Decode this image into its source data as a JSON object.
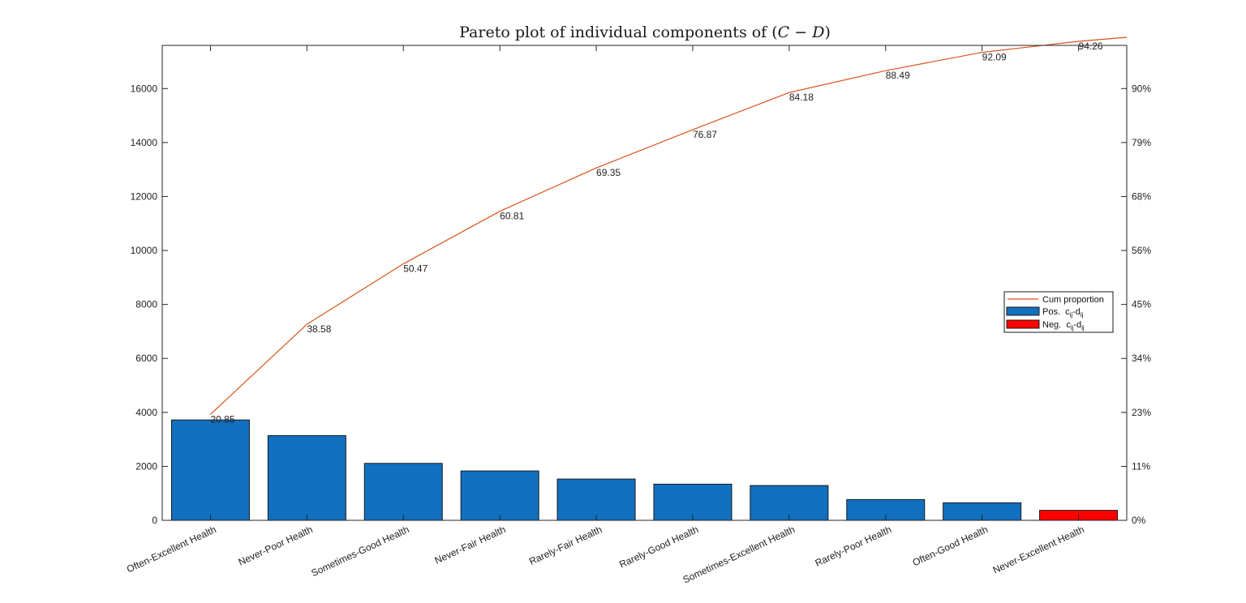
{
  "chart_data": {
    "type": "bar",
    "title_prefix": "Pareto plot of individual components of (",
    "title_math": "C − D",
    "title_suffix": ")",
    "categories": [
      "Often-Excellent Health",
      "Never-Poor Health",
      "Sometimes-Good Health",
      "Never-Fair Health",
      "Rarely-Fair Health",
      "Rarely-Good Health",
      "Sometimes-Excellent Health",
      "Rarely-Poor Health",
      "Often-Good Health",
      "Never-Excellent Health"
    ],
    "values": [
      3720,
      3140,
      2110,
      1830,
      1530,
      1340,
      1290,
      770,
      650,
      370
    ],
    "signs": [
      "pos",
      "pos",
      "pos",
      "pos",
      "pos",
      "pos",
      "pos",
      "pos",
      "pos",
      "neg"
    ],
    "cum_labels": [
      "20.85",
      "38.58",
      "50.47",
      "60.81",
      "69.35",
      "76.87",
      "84.18",
      "88.49",
      "92.09",
      "94.26"
    ],
    "cum_values": [
      20.85,
      38.58,
      50.47,
      60.81,
      69.35,
      76.87,
      84.18,
      88.49,
      92.09,
      94.26
    ],
    "ylim": [
      0,
      17600
    ],
    "yticks": [
      0,
      2000,
      4000,
      6000,
      8000,
      10000,
      12000,
      14000,
      16000
    ],
    "yticks_right": [
      "0%",
      "11%",
      "23%",
      "34%",
      "45%",
      "56%",
      "68%",
      "79%",
      "90%"
    ],
    "legend": {
      "placement": "right",
      "cum": "Cum proportion",
      "pos_prefix": "Pos.",
      "neg_prefix": "Neg.",
      "c": "c",
      "d": "-d",
      "sub": "ij"
    },
    "colors": {
      "pos": "#1170bf",
      "neg": "#ff0000",
      "line": "#d95319",
      "axis": "#262626"
    }
  }
}
